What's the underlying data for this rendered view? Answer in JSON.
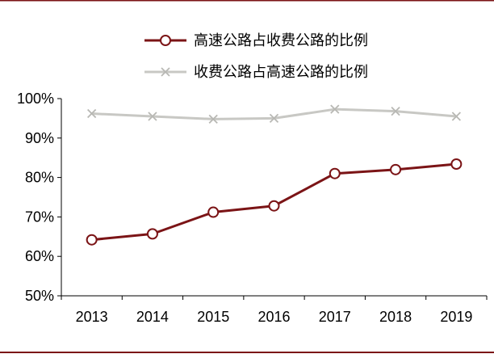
{
  "chart_data": {
    "type": "line",
    "title": "",
    "xlabel": "",
    "ylabel": "",
    "x": [
      "2013",
      "2014",
      "2015",
      "2016",
      "2017",
      "2018",
      "2019"
    ],
    "ylim": [
      50,
      100
    ],
    "y_ticks": [
      50,
      60,
      70,
      80,
      90,
      100
    ],
    "y_tick_labels": [
      "50%",
      "60%",
      "70%",
      "80%",
      "90%",
      "100%"
    ],
    "grid": false,
    "legend_position": "top-center",
    "series": [
      {
        "name": "高速公路占收费公路的比例",
        "marker": "circle",
        "color": "#7b1416",
        "values": [
          64.2,
          65.7,
          71.2,
          72.8,
          81.0,
          82.0,
          83.4
        ]
      },
      {
        "name": "收费公路占高速公路的比例",
        "marker": "x",
        "color": "#c8c8c4",
        "values": [
          96.2,
          95.5,
          94.8,
          95.0,
          97.3,
          96.8,
          95.5
        ]
      }
    ],
    "frame_color": "#7b1416"
  }
}
